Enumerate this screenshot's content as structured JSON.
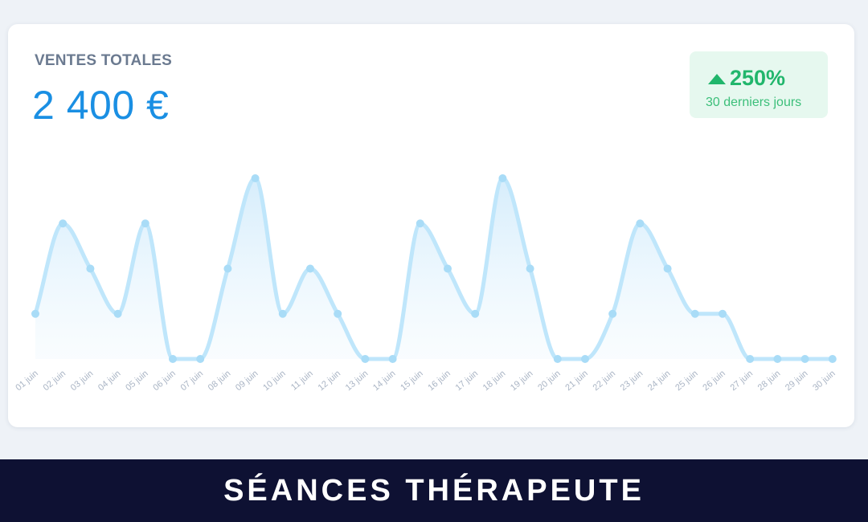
{
  "card": {
    "title": "VENTES TOTALES",
    "total": "2 400 €"
  },
  "growth": {
    "value": "250%",
    "caption": "30 derniers jours",
    "icon": "triangle-up-icon",
    "color": "#21b66c"
  },
  "footer": {
    "title": "SÉANCES THÉRAPEUTE"
  },
  "colors": {
    "accent": "#1a8fe3",
    "line": "#bfe6fb",
    "point": "#a9dcf7",
    "footer_bg": "#0e1133"
  },
  "chart_data": {
    "type": "area",
    "categories": [
      "01 juin",
      "02 juin",
      "03 juin",
      "04 juin",
      "05 juin",
      "06 juin",
      "07 juin",
      "08 juin",
      "09 juin",
      "10 juin",
      "11 juin",
      "12 juin",
      "13 juin",
      "14 juin",
      "15 juin",
      "16 juin",
      "17 juin",
      "18 juin",
      "19 juin",
      "20 juin",
      "21 juin",
      "22 juin",
      "23 juin",
      "24 juin",
      "25 juin",
      "26 juin",
      "27 juin",
      "28 juin",
      "29 juin",
      "30 juin"
    ],
    "values": [
      1,
      3,
      2,
      1,
      3,
      0,
      0,
      2,
      4,
      1,
      2,
      1,
      0,
      0,
      3,
      2,
      1,
      4,
      2,
      0,
      0,
      1,
      3,
      2,
      1,
      1,
      0,
      0,
      0,
      0
    ],
    "ylim": [
      0,
      4
    ],
    "grid": false,
    "smooth": true
  }
}
